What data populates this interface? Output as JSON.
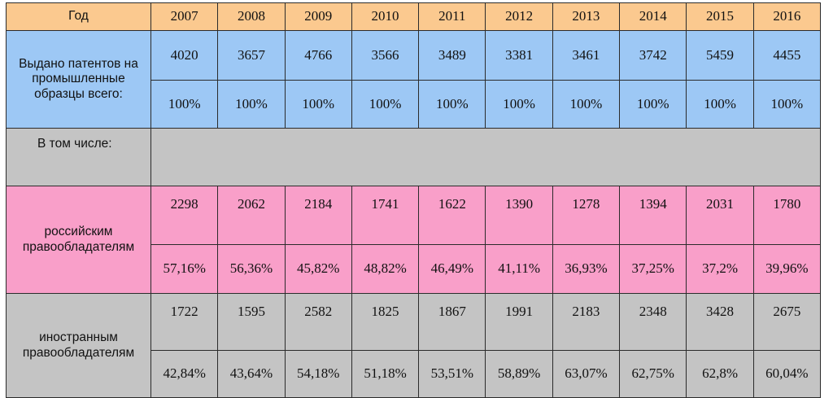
{
  "header": {
    "label": "Год",
    "years": [
      "2007",
      "2008",
      "2009",
      "2010",
      "2011",
      "2012",
      "2013",
      "2014",
      "2015",
      "2016"
    ]
  },
  "total": {
    "label": "Выдано патентов на промышленные образцы всего:",
    "counts": [
      "4020",
      "3657",
      "4766",
      "3566",
      "3489",
      "3381",
      "3461",
      "3742",
      "5459",
      "4455"
    ],
    "shares": [
      "100%",
      "100%",
      "100%",
      "100%",
      "100%",
      "100%",
      "100%",
      "100%",
      "100%",
      "100%"
    ]
  },
  "including": {
    "label": "В том числе:"
  },
  "russian": {
    "label": "российским правообладателям",
    "counts": [
      "2298",
      "2062",
      "2184",
      "1741",
      "1622",
      "1390",
      "1278",
      "1394",
      "2031",
      "1780"
    ],
    "shares": [
      "57,16%",
      "56,36%",
      "45,82%",
      "48,82%",
      "46,49%",
      "41,11%",
      "36,93%",
      "37,25%",
      "37,2%",
      "39,96%"
    ]
  },
  "foreign": {
    "label": "иностранным правообладателям",
    "counts": [
      "1722",
      "1595",
      "2582",
      "1825",
      "1867",
      "1991",
      "2183",
      "2348",
      "3428",
      "2675"
    ],
    "shares": [
      "42,84%",
      "43,64%",
      "54,18%",
      "51,18%",
      "53,51%",
      "58,89%",
      "63,07%",
      "62,75%",
      "62,8%",
      "60,04%"
    ]
  },
  "colors": {
    "header": "#fbc98f",
    "total": "#9dc8f5",
    "including": "#c4c4c4",
    "russian": "#f99fc9",
    "foreign": "#c4c4c4"
  }
}
